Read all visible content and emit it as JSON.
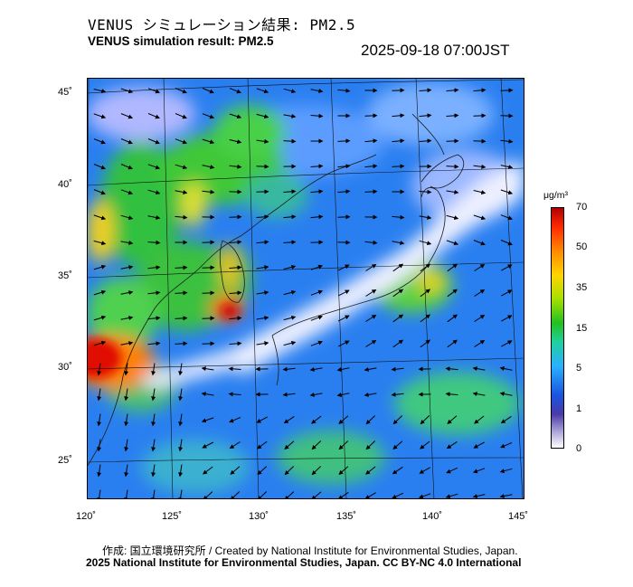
{
  "title_jp": "VENUS シミュレーション結果: PM2.5",
  "title_en": "VENUS simulation result: PM2.5",
  "timestamp": "2025-09-18 07:00JST",
  "latitude_labels": [
    "45˚",
    "40˚",
    "35˚",
    "30˚",
    "25˚"
  ],
  "longitude_labels": [
    "120˚",
    "125˚",
    "130˚",
    "135˚",
    "140˚",
    "145˚"
  ],
  "colorbar": {
    "unit": "μg/m³",
    "ticks": [
      "70",
      "50",
      "35",
      "15",
      "5",
      "1",
      "0"
    ]
  },
  "footer": {
    "credit": "作成: 国立環境研究所 / Created by National Institute for Environmental Studies, Japan.",
    "license": "2025 National Institute for Environmental Studies, Japan. CC BY-NC 4.0 International"
  },
  "colors": {
    "very_high": "#d80000",
    "high": "#ffb000",
    "moderate": "#30c030",
    "low": "#2a8cff",
    "very_low": "#f4f4ff"
  }
}
